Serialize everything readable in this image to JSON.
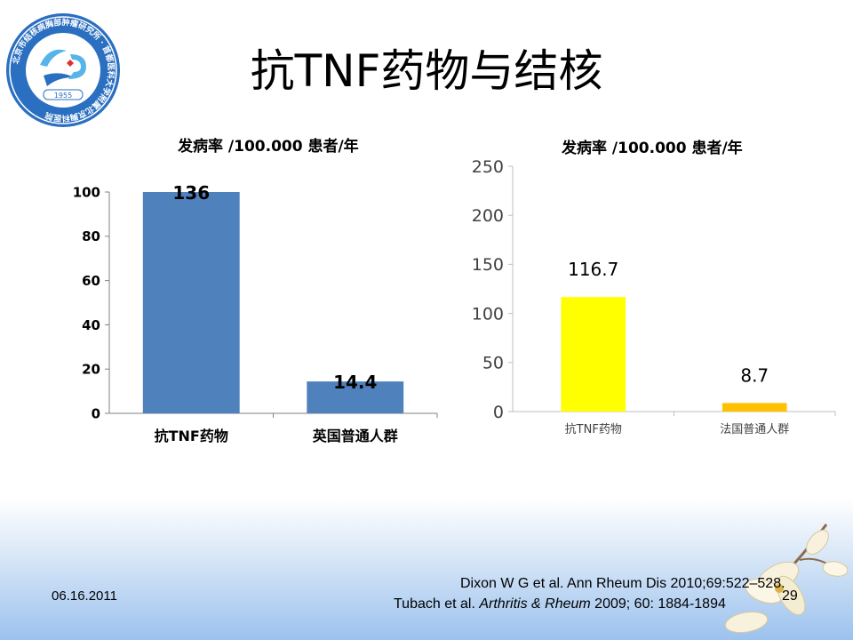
{
  "slide": {
    "title": "抗TNF药物与结核",
    "date": "06.16.2011",
    "page_number": "29",
    "references": {
      "ref1": "Dixon W G  et al. Ann Rheum Dis 2010;69:522–528.",
      "ref2_pre": "Tubach et al. ",
      "ref2_italic": "Arthritis & Rheum",
      "ref2_post": " 2009; 60: 1884-1894"
    }
  },
  "logo": {
    "ring_text": "北京市结核病胸部肿瘤研究所 · 首都医科大学附属北京胸科医院",
    "year": "1955",
    "colors": {
      "blue": "#2a6fc0",
      "light_blue": "#56b4e9",
      "red": "#e03030"
    }
  },
  "chart_data": [
    {
      "type": "bar",
      "title": "发病率 /100.000 患者/年",
      "categories": [
        "抗TNF药物",
        "英国普通人群"
      ],
      "values": [
        136,
        14.4
      ],
      "data_labels": [
        "136",
        "14.4"
      ],
      "ylim": [
        0,
        100
      ],
      "yticks": [
        "0",
        "20",
        "40",
        "60",
        "80",
        "100"
      ],
      "grid": false,
      "colors": [
        "#4f81bd",
        "#4f81bd"
      ]
    },
    {
      "type": "bar",
      "title": "发病率 /100.000 患者/年",
      "categories": [
        "抗TNF药物",
        "法国普通人群"
      ],
      "values": [
        116.7,
        8.7
      ],
      "data_labels": [
        "116.7",
        "8.7"
      ],
      "ylim": [
        0,
        250
      ],
      "yticks": [
        "0",
        "50",
        "100",
        "150",
        "200",
        "250"
      ],
      "grid": false,
      "colors": [
        "#ffff00",
        "#ffc000"
      ]
    }
  ]
}
